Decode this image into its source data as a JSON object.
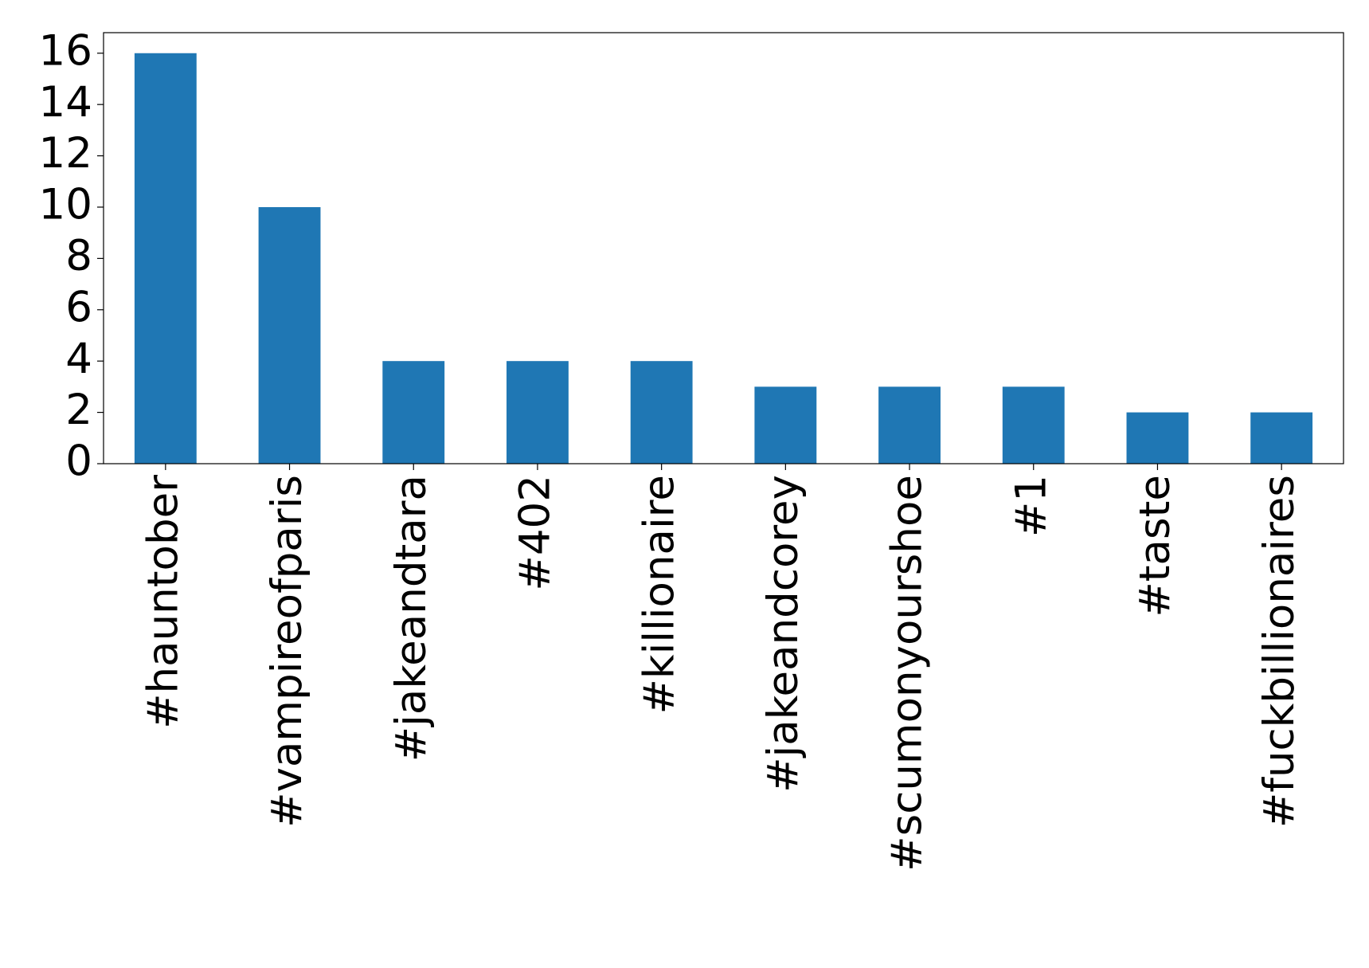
{
  "chart_data": {
    "type": "bar",
    "categories": [
      "#hauntober",
      "#vampireofparis",
      "#jakeandtara",
      "#402",
      "#killionaire",
      "#jakeandcorey",
      "#scumonyourshoe",
      "#1",
      "#taste",
      "#fuckbillionaires"
    ],
    "values": [
      16,
      10,
      4,
      4,
      4,
      3,
      3,
      3,
      2,
      2
    ],
    "color": "#1f77b4",
    "ylim": [
      0,
      16.8
    ],
    "yticks": [
      0,
      2,
      4,
      6,
      8,
      10,
      12,
      14,
      16
    ],
    "grid": false
  }
}
